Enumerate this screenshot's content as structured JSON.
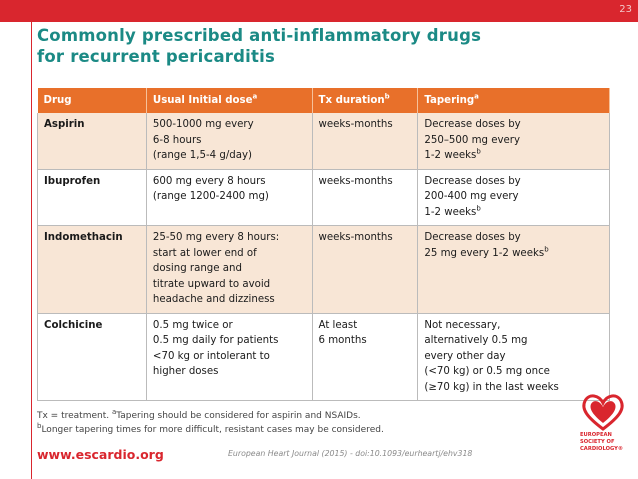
{
  "slide_number": "23",
  "title_line1": "Commonly prescribed anti-inflammatory drugs",
  "title_line2": "for recurrent pericarditis",
  "headers": {
    "drug": "Drug",
    "dose": "Usual Initial dose",
    "dose_sup": "a",
    "duration": "Tx duration",
    "duration_sup": "b",
    "tapering": "Tapering",
    "tapering_sup": "a"
  },
  "rows": [
    {
      "drug": "Aspirin",
      "dose": [
        "500-1000 mg every",
        "6-8 hours",
        "(range 1,5-4 g/day)"
      ],
      "duration": [
        "weeks-months"
      ],
      "tapering": [
        "Decrease doses by",
        "250–500 mg every"
      ],
      "tapering_last": "1-2 weeks",
      "tapering_sup": "b"
    },
    {
      "drug": "Ibuprofen",
      "dose": [
        "600 mg every 8 hours",
        "(range 1200-2400 mg)"
      ],
      "duration": [
        "weeks-months"
      ],
      "tapering": [
        "Decrease doses by",
        "200-400 mg every"
      ],
      "tapering_last": "1-2 weeks",
      "tapering_sup": "b"
    },
    {
      "drug": "Indomethacin",
      "dose": [
        "25-50 mg every 8 hours:",
        "start at lower end of",
        "dosing range and",
        "titrate upward to avoid",
        "headache and dizziness"
      ],
      "duration": [
        "weeks-months"
      ],
      "tapering": [
        "Decrease doses by"
      ],
      "tapering_last": "25 mg every 1-2 weeks",
      "tapering_sup": "b"
    },
    {
      "drug": "Colchicine",
      "dose": [
        "0.5 mg twice or",
        "0.5 mg daily for patients",
        "<70 kg or intolerant to",
        "higher doses"
      ],
      "duration": [
        "At least",
        "6 months"
      ],
      "tapering": [
        "Not necessary,",
        "alternatively 0.5 mg",
        "every other day",
        "(<70 kg) or 0.5 mg once",
        "(≥70 kg) in the last weeks"
      ],
      "tapering_last": "",
      "tapering_sup": ""
    }
  ],
  "notes": {
    "line1_a": "Tx = treatment. ",
    "line1_sup": "a",
    "line1_b": "Tapering should be considered for aspirin and NSAIDs.",
    "line2_sup": "b",
    "line2_b": "Longer tapering times for more difficult, resistant cases may be considered."
  },
  "footer": {
    "url": "www.escardio.org",
    "reference": "European Heart Journal (2015) - doi:10.1093/eurheartj/ehv318",
    "logo_lines": [
      "EUROPEAN",
      "SOCIETY OF",
      "CARDIOLOGY®"
    ]
  },
  "colors": {
    "brand_red": "#d9262e",
    "title_teal": "#1b8a85",
    "header_orange": "#e8702a",
    "row_tint": "#f8e6d6"
  }
}
